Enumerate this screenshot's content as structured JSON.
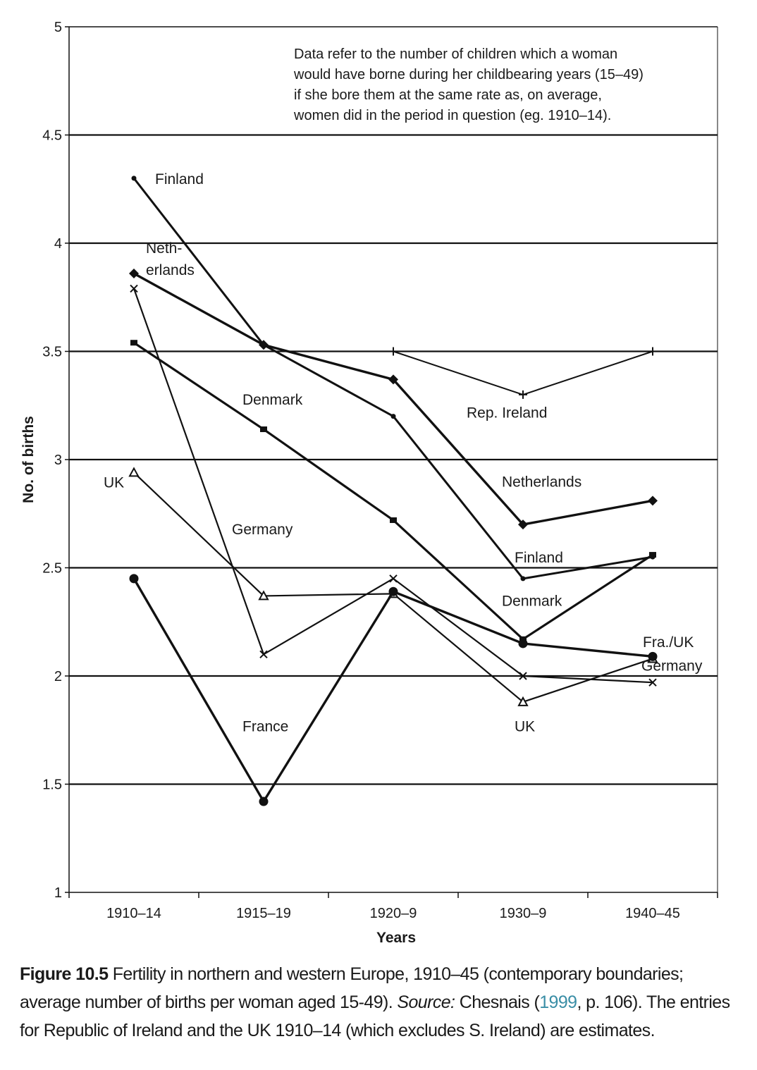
{
  "chart_data": {
    "type": "line",
    "ylabel": "No. of births",
    "xlabel": "Years",
    "categories": [
      "1910–14",
      "1915–19",
      "1920–9",
      "1930–9",
      "1940–45"
    ],
    "ylim": [
      1,
      5
    ],
    "yticks": [
      "1",
      "1.5",
      "2",
      "2.5",
      "3",
      "3.5",
      "4",
      "4.5",
      "5"
    ],
    "grid": "horizontal lines",
    "note": [
      "Data refer to the number of children which a woman",
      "would have borne during her childbearing years (15–49)",
      "if she bore them at the same rate as, on average,",
      "women did in the period in question (eg. 1910–14)."
    ],
    "series": [
      {
        "name": "Finland",
        "marker": "smalldot",
        "values": [
          4.3,
          3.53,
          3.2,
          2.45,
          2.55
        ]
      },
      {
        "name": "Netherlands",
        "marker": "diamond",
        "values": [
          3.86,
          3.53,
          3.37,
          2.7,
          2.81
        ]
      },
      {
        "name": "Denmark",
        "marker": "square",
        "values": [
          3.54,
          3.14,
          2.72,
          2.17,
          2.56
        ]
      },
      {
        "name": "Germany",
        "marker": "x",
        "values": [
          3.79,
          2.1,
          2.45,
          2.0,
          1.97
        ]
      },
      {
        "name": "UK",
        "marker": "triangle",
        "values": [
          2.94,
          2.37,
          2.38,
          1.88,
          2.08
        ]
      },
      {
        "name": "France",
        "marker": "circle",
        "values": [
          2.45,
          1.42,
          2.39,
          2.15,
          2.09
        ]
      },
      {
        "name": "Rep. Ireland",
        "marker": "plus",
        "values": [
          null,
          null,
          3.5,
          3.3,
          3.5
        ]
      }
    ],
    "annotations": [
      {
        "text": "Finland",
        "x": "1910–14",
        "y": 4.3
      },
      {
        "text": "Neth-",
        "x": "1910–14",
        "y": 3.98
      },
      {
        "text": "erlands",
        "x": "1910–14",
        "y": 3.88
      },
      {
        "text": "Denmark",
        "x": "1915–19",
        "y": 3.28
      },
      {
        "text": "UK",
        "x": "1910–14",
        "y": 2.92
      },
      {
        "text": "Germany",
        "x": "1915–19",
        "y": 2.68
      },
      {
        "text": "France",
        "x": "1915–19",
        "y": 1.77
      },
      {
        "text": "Rep. Ireland",
        "x": "1930–9",
        "y": 3.22
      },
      {
        "text": "Netherlands",
        "x": "1930–9",
        "y": 2.9
      },
      {
        "text": "Finland",
        "x": "1930–9",
        "y": 2.55
      },
      {
        "text": "Denmark",
        "x": "1930–9",
        "y": 2.35
      },
      {
        "text": "Fra./UK",
        "x": "1940–45",
        "y": 2.16
      },
      {
        "text": "Germany",
        "x": "1940–45",
        "y": 2.05
      },
      {
        "text": "UK",
        "x": "1930–9",
        "y": 1.77
      }
    ]
  },
  "caption": {
    "figure_number": "Figure 10.5",
    "text_1": " Fertility in northern and western Europe, 1910–45 (contemporary boundaries; average number of births per woman aged 15-49). ",
    "source_label": "Source:",
    "text_2": " Chesnais (",
    "ref_year": "1999",
    "text_3": ", p. 106). The entries for Republic of Ireland and the UK 1910–14 (which excludes S. Ireland) are estimates."
  }
}
